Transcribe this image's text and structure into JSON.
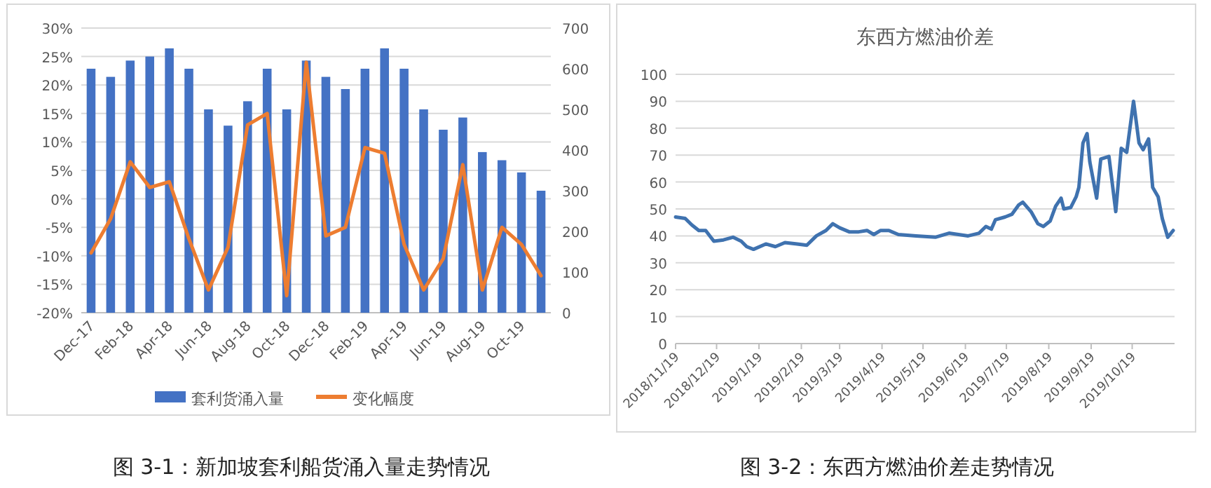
{
  "chart_data": [
    {
      "type": "bar",
      "categories": [
        "Dec-17",
        null,
        "Feb-18",
        null,
        "Apr-18",
        null,
        "Jun-18",
        null,
        "Aug-18",
        null,
        "Oct-18",
        null,
        "Dec-18",
        null,
        "Feb-19",
        null,
        "Apr-19",
        null,
        "Jun-19",
        null,
        "Aug-19",
        null,
        "Oct-19",
        null
      ],
      "series": [
        {
          "name": "套利货涌入量",
          "axis": "y2",
          "color": "#4472c4",
          "values": [
            600,
            580,
            620,
            630,
            650,
            600,
            500,
            460,
            520,
            600,
            500,
            620,
            580,
            550,
            600,
            650,
            600,
            500,
            450,
            480,
            395,
            375,
            345,
            300
          ]
        },
        {
          "name": "变化幅度",
          "type": "line",
          "color": "#ed7d31",
          "values": [
            -9.5,
            -3.5,
            6.5,
            2,
            3,
            -7,
            -16,
            -8.5,
            13,
            15,
            -17,
            24,
            -6.5,
            -5,
            9,
            8,
            -8,
            -16,
            -10.5,
            6,
            -16,
            -5,
            -8,
            -13.5
          ]
        }
      ],
      "ylim": [
        -20,
        30
      ],
      "yticks": [
        {
          "value": -20,
          "label": "-20%"
        },
        {
          "value": -15,
          "label": "-15%"
        },
        {
          "value": -10,
          "label": "-10%"
        },
        {
          "value": -5,
          "label": "-5%"
        },
        {
          "value": 0,
          "label": "0%"
        },
        {
          "value": 5,
          "label": "5%"
        },
        {
          "value": 10,
          "label": "10%"
        },
        {
          "value": 15,
          "label": "15%"
        },
        {
          "value": 20,
          "label": "20%"
        },
        {
          "value": 25,
          "label": "25%"
        },
        {
          "value": 30,
          "label": "30%"
        }
      ],
      "y2lim": [
        0,
        700
      ],
      "y2ticks": [
        0,
        100,
        200,
        300,
        400,
        500,
        600,
        700
      ],
      "grid": "y",
      "legend": "bottom",
      "marker": "none",
      "line_style": "solid",
      "annotations": [
        "图 3-1：新加坡套利船货涌入量走势情况"
      ]
    },
    {
      "type": "line",
      "title": "东西方燃油价差",
      "x": [
        "2018-11-19",
        "2018-11-26",
        "2018-12-01",
        "2018-12-06",
        "2018-12-11",
        "2018-12-17",
        "2018-12-24",
        "2018-12-31",
        "2019-01-06",
        "2019-01-10",
        "2019-01-15",
        "2019-01-24",
        "2019-01-31",
        "2019-02-07",
        "2019-02-16",
        "2019-02-23",
        "2019-03-02",
        "2019-03-09",
        "2019-03-14",
        "2019-03-19",
        "2019-03-26",
        "2019-04-02",
        "2019-04-08",
        "2019-04-13",
        "2019-04-18",
        "2019-04-24",
        "2019-05-01",
        "2019-05-14",
        "2019-05-28",
        "2019-06-07",
        "2019-06-21",
        "2019-06-29",
        "2019-07-04",
        "2019-07-08",
        "2019-07-11",
        "2019-07-18",
        "2019-07-23",
        "2019-07-28",
        "2019-07-31",
        "2019-08-06",
        "2019-08-11",
        "2019-08-15",
        "2019-08-20",
        "2019-08-24",
        "2019-08-28",
        "2019-08-30",
        "2019-09-04",
        "2019-09-08",
        "2019-09-10",
        "2019-09-13",
        "2019-09-16",
        "2019-09-18",
        "2019-09-23",
        "2019-09-26",
        "2019-10-02",
        "2019-10-07",
        "2019-10-11",
        "2019-10-15",
        "2019-10-20",
        "2019-10-24",
        "2019-10-27",
        "2019-10-31",
        "2019-11-03",
        "2019-11-07",
        "2019-11-10",
        "2019-11-14",
        "2019-11-18"
      ],
      "series": [
        {
          "color": "#3f72af",
          "values": [
            47,
            46.5,
            44,
            42,
            42,
            38,
            38.5,
            39.5,
            38,
            36,
            35,
            37,
            36,
            37.5,
            37,
            36.5,
            40,
            42,
            44.5,
            43,
            41.5,
            41.5,
            42,
            40.5,
            42,
            42,
            40.5,
            40,
            39.5,
            41,
            40,
            41,
            43.5,
            42.5,
            46,
            47,
            48,
            51.5,
            52.5,
            49,
            44.5,
            43.5,
            45.5,
            51,
            54,
            50,
            50.5,
            54.5,
            58,
            74.5,
            78,
            67.5,
            54,
            68.5,
            69.5,
            49,
            72.5,
            71,
            90,
            74.5,
            72,
            76,
            58,
            54.5,
            46.5,
            39.5,
            42
          ]
        }
      ],
      "xlim": [
        "2018-11-19",
        "2019-11-19"
      ],
      "xticks": [
        {
          "value": "2018-11-19",
          "label": "2018/11/19"
        },
        {
          "value": "2018-12-19",
          "label": "2018/12/19"
        },
        {
          "value": "2019-01-19",
          "label": "2019/1/19"
        },
        {
          "value": "2019-02-19",
          "label": "2019/2/19"
        },
        {
          "value": "2019-03-19",
          "label": "2019/3/19"
        },
        {
          "value": "2019-04-19",
          "label": "2019/4/19"
        },
        {
          "value": "2019-05-19",
          "label": "2019/5/19"
        },
        {
          "value": "2019-06-19",
          "label": "2019/6/19"
        },
        {
          "value": "2019-07-19",
          "label": "2019/7/19"
        },
        {
          "value": "2019-08-19",
          "label": "2019/8/19"
        },
        {
          "value": "2019-09-19",
          "label": "2019/9/19"
        },
        {
          "value": "2019-10-19",
          "label": "2019/10/19"
        }
      ],
      "ylim": [
        0,
        100
      ],
      "yticks": [
        0,
        10,
        20,
        30,
        40,
        50,
        60,
        70,
        80,
        90,
        100
      ],
      "grid": "y",
      "marker": "none",
      "line_style": "solid",
      "annotations": [
        "图 3-2：东西方燃油价差走势情况"
      ]
    }
  ]
}
